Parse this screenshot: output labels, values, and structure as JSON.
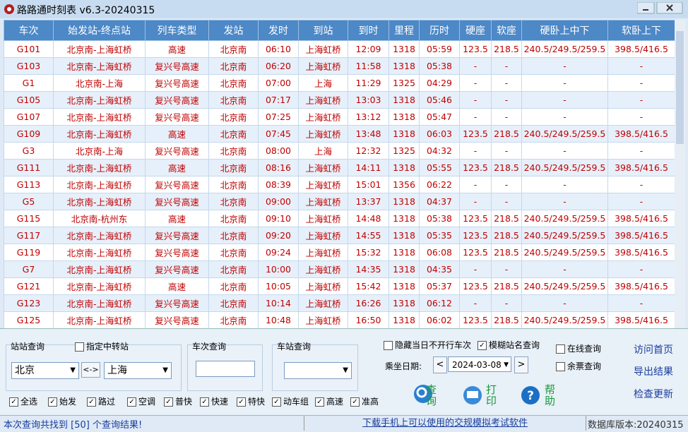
{
  "window": {
    "title": "路路通时刻表 v6.3-20240315"
  },
  "table": {
    "headers": [
      "车次",
      "始发站-终点站",
      "列车类型",
      "发站",
      "发时",
      "到站",
      "到时",
      "里程",
      "历时",
      "硬座",
      "软座",
      "硬卧上中下",
      "软卧上下"
    ],
    "rows": [
      [
        "G101",
        "北京南-上海虹桥",
        "高速",
        "北京南",
        "06:10",
        "上海虹桥",
        "12:09",
        "1318",
        "05:59",
        "123.5",
        "218.5",
        "240.5/249.5/259.5",
        "398.5/416.5"
      ],
      [
        "G103",
        "北京南-上海虹桥",
        "复兴号高速",
        "北京南",
        "06:20",
        "上海虹桥",
        "11:58",
        "1318",
        "05:38",
        "-",
        "-",
        "-",
        "-"
      ],
      [
        "G1",
        "北京南-上海",
        "复兴号高速",
        "北京南",
        "07:00",
        "上海",
        "11:29",
        "1325",
        "04:29",
        "-",
        "-",
        "-",
        "-"
      ],
      [
        "G105",
        "北京南-上海虹桥",
        "复兴号高速",
        "北京南",
        "07:17",
        "上海虹桥",
        "13:03",
        "1318",
        "05:46",
        "-",
        "-",
        "-",
        "-"
      ],
      [
        "G107",
        "北京南-上海虹桥",
        "复兴号高速",
        "北京南",
        "07:25",
        "上海虹桥",
        "13:12",
        "1318",
        "05:47",
        "-",
        "-",
        "-",
        "-"
      ],
      [
        "G109",
        "北京南-上海虹桥",
        "高速",
        "北京南",
        "07:45",
        "上海虹桥",
        "13:48",
        "1318",
        "06:03",
        "123.5",
        "218.5",
        "240.5/249.5/259.5",
        "398.5/416.5"
      ],
      [
        "G3",
        "北京南-上海",
        "复兴号高速",
        "北京南",
        "08:00",
        "上海",
        "12:32",
        "1325",
        "04:32",
        "-",
        "-",
        "-",
        "-"
      ],
      [
        "G111",
        "北京南-上海虹桥",
        "高速",
        "北京南",
        "08:16",
        "上海虹桥",
        "14:11",
        "1318",
        "05:55",
        "123.5",
        "218.5",
        "240.5/249.5/259.5",
        "398.5/416.5"
      ],
      [
        "G113",
        "北京南-上海虹桥",
        "复兴号高速",
        "北京南",
        "08:39",
        "上海虹桥",
        "15:01",
        "1356",
        "06:22",
        "-",
        "-",
        "-",
        "-"
      ],
      [
        "G5",
        "北京南-上海虹桥",
        "复兴号高速",
        "北京南",
        "09:00",
        "上海虹桥",
        "13:37",
        "1318",
        "04:37",
        "-",
        "-",
        "-",
        "-"
      ],
      [
        "G115",
        "北京南-杭州东",
        "高速",
        "北京南",
        "09:10",
        "上海虹桥",
        "14:48",
        "1318",
        "05:38",
        "123.5",
        "218.5",
        "240.5/249.5/259.5",
        "398.5/416.5"
      ],
      [
        "G117",
        "北京南-上海虹桥",
        "复兴号高速",
        "北京南",
        "09:20",
        "上海虹桥",
        "14:55",
        "1318",
        "05:35",
        "123.5",
        "218.5",
        "240.5/249.5/259.5",
        "398.5/416.5"
      ],
      [
        "G119",
        "北京南-上海虹桥",
        "复兴号高速",
        "北京南",
        "09:24",
        "上海虹桥",
        "15:32",
        "1318",
        "06:08",
        "123.5",
        "218.5",
        "240.5/249.5/259.5",
        "398.5/416.5"
      ],
      [
        "G7",
        "北京南-上海虹桥",
        "复兴号高速",
        "北京南",
        "10:00",
        "上海虹桥",
        "14:35",
        "1318",
        "04:35",
        "-",
        "-",
        "-",
        "-"
      ],
      [
        "G121",
        "北京南-上海虹桥",
        "高速",
        "北京南",
        "10:05",
        "上海虹桥",
        "15:42",
        "1318",
        "05:37",
        "123.5",
        "218.5",
        "240.5/249.5/259.5",
        "398.5/416.5"
      ],
      [
        "G123",
        "北京南-上海虹桥",
        "复兴号高速",
        "北京南",
        "10:14",
        "上海虹桥",
        "16:26",
        "1318",
        "06:12",
        "-",
        "-",
        "-",
        "-"
      ],
      [
        "G125",
        "北京南-上海虹桥",
        "复兴号高速",
        "北京南",
        "10:48",
        "上海虹桥",
        "16:50",
        "1318",
        "06:02",
        "123.5",
        "218.5",
        "240.5/249.5/259.5",
        "398.5/416.5"
      ]
    ]
  },
  "panel": {
    "station_query": "站站查询",
    "transfer": {
      "label": "指定中转站",
      "checked": false
    },
    "from": "北京",
    "swap": "<->",
    "to": "上海",
    "train_query": "车次查询",
    "stop_query": "车站查询",
    "hide": {
      "label": "隐藏当日不开行车次",
      "checked": false
    },
    "fuzzy": {
      "label": "模糊站名查询",
      "checked": true
    },
    "date_label": "乘坐日期:",
    "prev": "<",
    "date": "2024-03-08",
    "next": ">",
    "online": {
      "label": "在线查询",
      "checked": false
    },
    "tickets": {
      "label": "余票查询",
      "checked": false
    },
    "links": [
      "访问首页",
      "导出结果",
      "检查更新"
    ],
    "filters": [
      {
        "label": "全选",
        "checked": true
      },
      {
        "label": "始发",
        "checked": true
      },
      {
        "label": "路过",
        "checked": true
      },
      {
        "label": "空调",
        "checked": true
      },
      {
        "label": "普快",
        "checked": true
      },
      {
        "label": "快速",
        "checked": true
      },
      {
        "label": "特快",
        "checked": true
      },
      {
        "label": "动车组",
        "checked": true
      },
      {
        "label": "高速",
        "checked": true
      },
      {
        "label": "准高",
        "checked": true
      }
    ],
    "buttons": [
      "查询",
      "打印",
      "帮助"
    ]
  },
  "status": {
    "result": "本次查询共找到 [50] 个查询结果!",
    "ad": "下载手机上可以使用的交规模拟考试软件",
    "version": "数据库版本:20240315"
  }
}
